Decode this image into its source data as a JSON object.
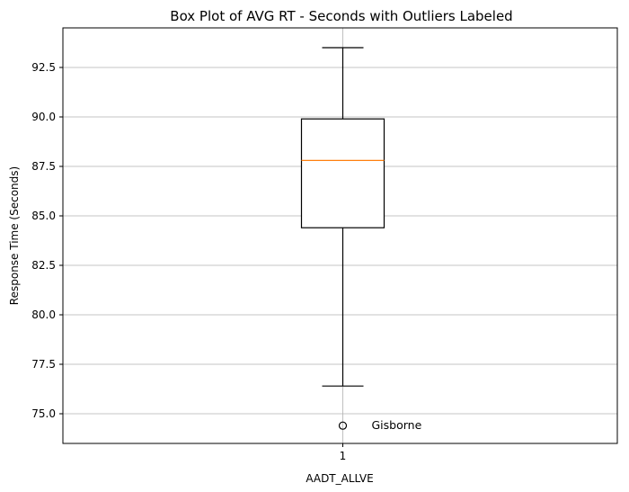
{
  "chart_data": {
    "type": "box",
    "title": "Box Plot of AVG RT - Seconds with Outliers Labeled",
    "xlabel": "AADT_ALLVE",
    "ylabel": "Response Time (Seconds)",
    "categories": [
      "1"
    ],
    "boxes": [
      {
        "category": "1",
        "whisker_low": 76.4,
        "q1": 84.4,
        "median": 87.8,
        "q3": 89.9,
        "whisker_high": 93.5,
        "outliers": [
          {
            "value": 74.4,
            "label": "Gisborne"
          }
        ]
      }
    ],
    "yticks": [
      "75.0",
      "77.5",
      "80.0",
      "82.5",
      "85.0",
      "87.5",
      "90.0",
      "92.5"
    ],
    "ylim": [
      73.5,
      94.5
    ],
    "grid": true,
    "colors": {
      "box": "#000000",
      "median": "#ff7f0e",
      "grid": "#b0b0b0"
    }
  }
}
